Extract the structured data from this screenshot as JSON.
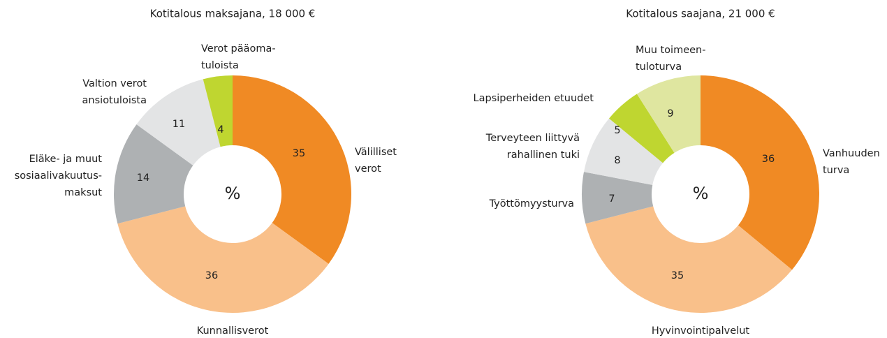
{
  "chart_data": [
    {
      "type": "donut",
      "title": "Kotitalous maksajana, 18 000 €",
      "center_label": "%",
      "categories": [
        [
          "Välilliset",
          "verot"
        ],
        [
          "Kunnallisverot"
        ],
        [
          "Eläke- ja muut",
          "sosiaalivakuutus-",
          "maksut"
        ],
        [
          "Valtion verot",
          "ansiotuloista"
        ],
        [
          "Verot pääoma-",
          "tuloista"
        ]
      ],
      "values": [
        35,
        36,
        14,
        11,
        4
      ],
      "colors": [
        "#f08a24",
        "#f9c08a",
        "#aeb1b3",
        "#e3e4e5",
        "#bfd630"
      ]
    },
    {
      "type": "donut",
      "title": "Kotitalous saajana, 21 000 €",
      "center_label": "%",
      "categories": [
        [
          "Vanhuuden",
          "turva"
        ],
        [
          "Hyvinvointipalvelut"
        ],
        [
          "Työttömyysturva"
        ],
        [
          "Terveyteen liittyvä",
          "rahallinen tuki"
        ],
        [
          "Lapsiperheiden etuudet"
        ],
        [
          "Muu toimeen-",
          "tuloturva"
        ]
      ],
      "values": [
        36,
        35,
        7,
        8,
        5,
        9
      ],
      "colors": [
        "#f08a24",
        "#f9c08a",
        "#aeb1b3",
        "#e3e4e5",
        "#bfd630",
        "#dfe6a0"
      ]
    }
  ]
}
